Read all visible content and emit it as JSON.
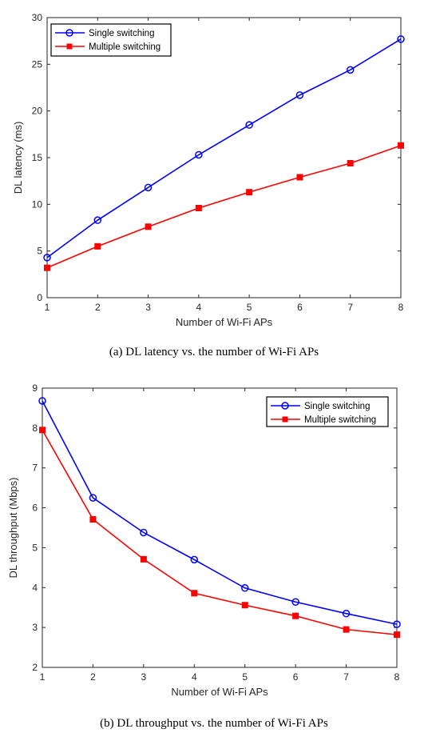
{
  "chart_data": [
    {
      "type": "line",
      "caption": "(a) DL latency vs. the number of Wi-Fi APs",
      "xlabel": "Number of Wi-Fi APs",
      "ylabel": "DL latency (ms)",
      "x": [
        1,
        2,
        3,
        4,
        5,
        6,
        7,
        8
      ],
      "xlim": [
        1,
        8
      ],
      "ylim": [
        0,
        30
      ],
      "yticks": [
        0,
        5,
        10,
        15,
        20,
        25,
        30
      ],
      "grid": false,
      "legend_position": "top-left",
      "series": [
        {
          "name": "Single switching",
          "color": "#0000ff",
          "marker": "circle",
          "values": [
            4.3,
            8.3,
            11.8,
            15.3,
            18.5,
            21.7,
            24.4,
            27.7
          ]
        },
        {
          "name": "Multiple switching",
          "color": "#ff0000",
          "marker": "square",
          "values": [
            3.2,
            5.5,
            7.6,
            9.6,
            11.3,
            12.9,
            14.4,
            16.3
          ]
        }
      ]
    },
    {
      "type": "line",
      "caption": "(b) DL throughput vs. the number of Wi-Fi APs",
      "xlabel": "Number of Wi-Fi APs",
      "ylabel": "DL throughput (Mbps)",
      "x": [
        1,
        2,
        3,
        4,
        5,
        6,
        7,
        8
      ],
      "xlim": [
        1,
        8
      ],
      "ylim": [
        2,
        9
      ],
      "yticks": [
        2,
        3,
        4,
        5,
        6,
        7,
        8,
        9
      ],
      "grid": false,
      "legend_position": "top-right",
      "series": [
        {
          "name": "Single switching",
          "color": "#0000ff",
          "marker": "circle",
          "values": [
            8.68,
            6.25,
            5.38,
            4.7,
            3.99,
            3.64,
            3.35,
            3.08
          ]
        },
        {
          "name": "Multiple switching",
          "color": "#ff0000",
          "marker": "square",
          "values": [
            7.95,
            5.71,
            4.71,
            3.86,
            3.56,
            3.29,
            2.95,
            2.82
          ]
        }
      ]
    }
  ]
}
